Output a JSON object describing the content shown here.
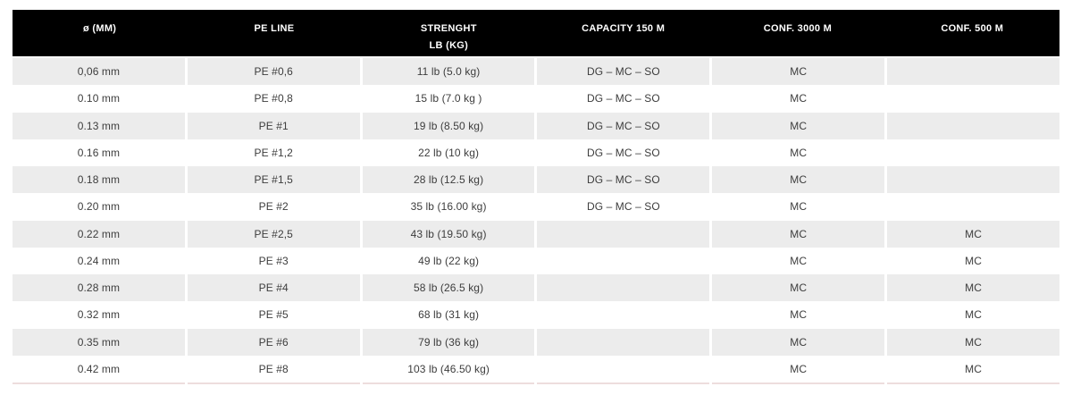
{
  "colors": {
    "header_bg": "#000000",
    "header_text": "#ffffff",
    "row_alt_bg": "#ececec",
    "row_bg": "#ffffff",
    "body_text": "#3d3d3d",
    "bottom_border": "#eddddd"
  },
  "chart_data": {
    "type": "table",
    "columns": [
      {
        "key": "diameter",
        "lines": [
          "ø (MM)"
        ]
      },
      {
        "key": "pe-line",
        "lines": [
          "PE LINE"
        ]
      },
      {
        "key": "strength",
        "lines": [
          "STRENGHT",
          "LB (KG)"
        ]
      },
      {
        "key": "capacity-150m",
        "lines": [
          "CAPACITY 150 M"
        ]
      },
      {
        "key": "conf-3000m",
        "lines": [
          "CONF. 3000 M"
        ]
      },
      {
        "key": "conf-500m",
        "lines": [
          "CONF. 500 M"
        ]
      }
    ],
    "rows": [
      [
        "0,06 mm",
        "PE #0,6",
        "11 lb (5.0 kg)",
        "DG – MC – SO",
        "MC",
        ""
      ],
      [
        "0.10 mm",
        "PE #0,8",
        "15 lb (7.0 kg )",
        "DG – MC – SO",
        "MC",
        ""
      ],
      [
        "0.13 mm",
        "PE #1",
        "19 lb (8.50 kg)",
        "DG – MC – SO",
        "MC",
        ""
      ],
      [
        "0.16 mm",
        "PE #1,2",
        "22 lb (10 kg)",
        "DG – MC – SO",
        "MC",
        ""
      ],
      [
        "0.18 mm",
        "PE #1,5",
        "28 lb (12.5 kg)",
        "DG – MC – SO",
        "MC",
        ""
      ],
      [
        "0.20 mm",
        "PE #2",
        "35 lb (16.00 kg)",
        "DG – MC – SO",
        "MC",
        ""
      ],
      [
        "0.22 mm",
        "PE #2,5",
        "43 lb (19.50 kg)",
        "",
        "MC",
        "MC"
      ],
      [
        "0.24 mm",
        "PE #3",
        "49 lb (22 kg)",
        "",
        "MC",
        "MC"
      ],
      [
        "0.28 mm",
        "PE #4",
        "58 lb (26.5 kg)",
        "",
        "MC",
        "MC"
      ],
      [
        "0.32 mm",
        "PE #5",
        "68 lb (31 kg)",
        "",
        "MC",
        "MC"
      ],
      [
        "0.35 mm",
        "PE #6",
        "79 lb (36 kg)",
        "",
        "MC",
        "MC"
      ],
      [
        "0.42 mm",
        "PE #8",
        "103 lb (46.50 kg)",
        "",
        "MC",
        "MC"
      ]
    ]
  }
}
